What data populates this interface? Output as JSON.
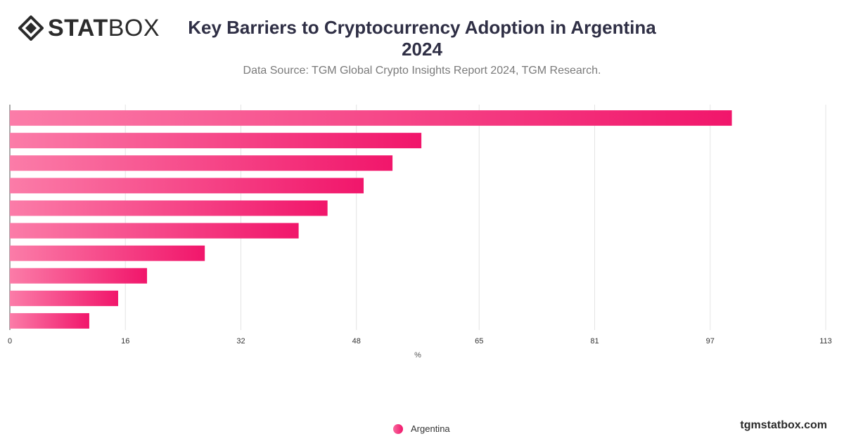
{
  "header": {
    "logo_text_bold": "STAT",
    "logo_text_light": "BOX",
    "title_line1": "Key Barriers to Cryptocurrency Adoption in Argentina",
    "title_line2": "2024",
    "subtitle": "Data Source: TGM Global Crypto Insights Report 2024, TGM Research."
  },
  "footer": {
    "brand": "tgmstatbox.com"
  },
  "colors": {
    "bar_start": "#fb7ca8",
    "bar_end": "#f1166b",
    "grid": "#e4e4e4",
    "tick_text": "#333333"
  },
  "chart_data": {
    "type": "bar",
    "orientation": "horizontal",
    "xlabel": "%",
    "xlim": [
      0,
      113
    ],
    "xticks": [
      0,
      16,
      32,
      48,
      65,
      81,
      97,
      113
    ],
    "grid": true,
    "legend_position": "bottom-center",
    "categories": [
      "",
      "",
      "",
      "",
      "",
      "",
      "",
      "",
      "",
      ""
    ],
    "series": [
      {
        "name": "Argentina",
        "values": [
          100,
          57,
          53,
          49,
          44,
          40,
          27,
          19,
          15,
          11
        ]
      }
    ]
  }
}
